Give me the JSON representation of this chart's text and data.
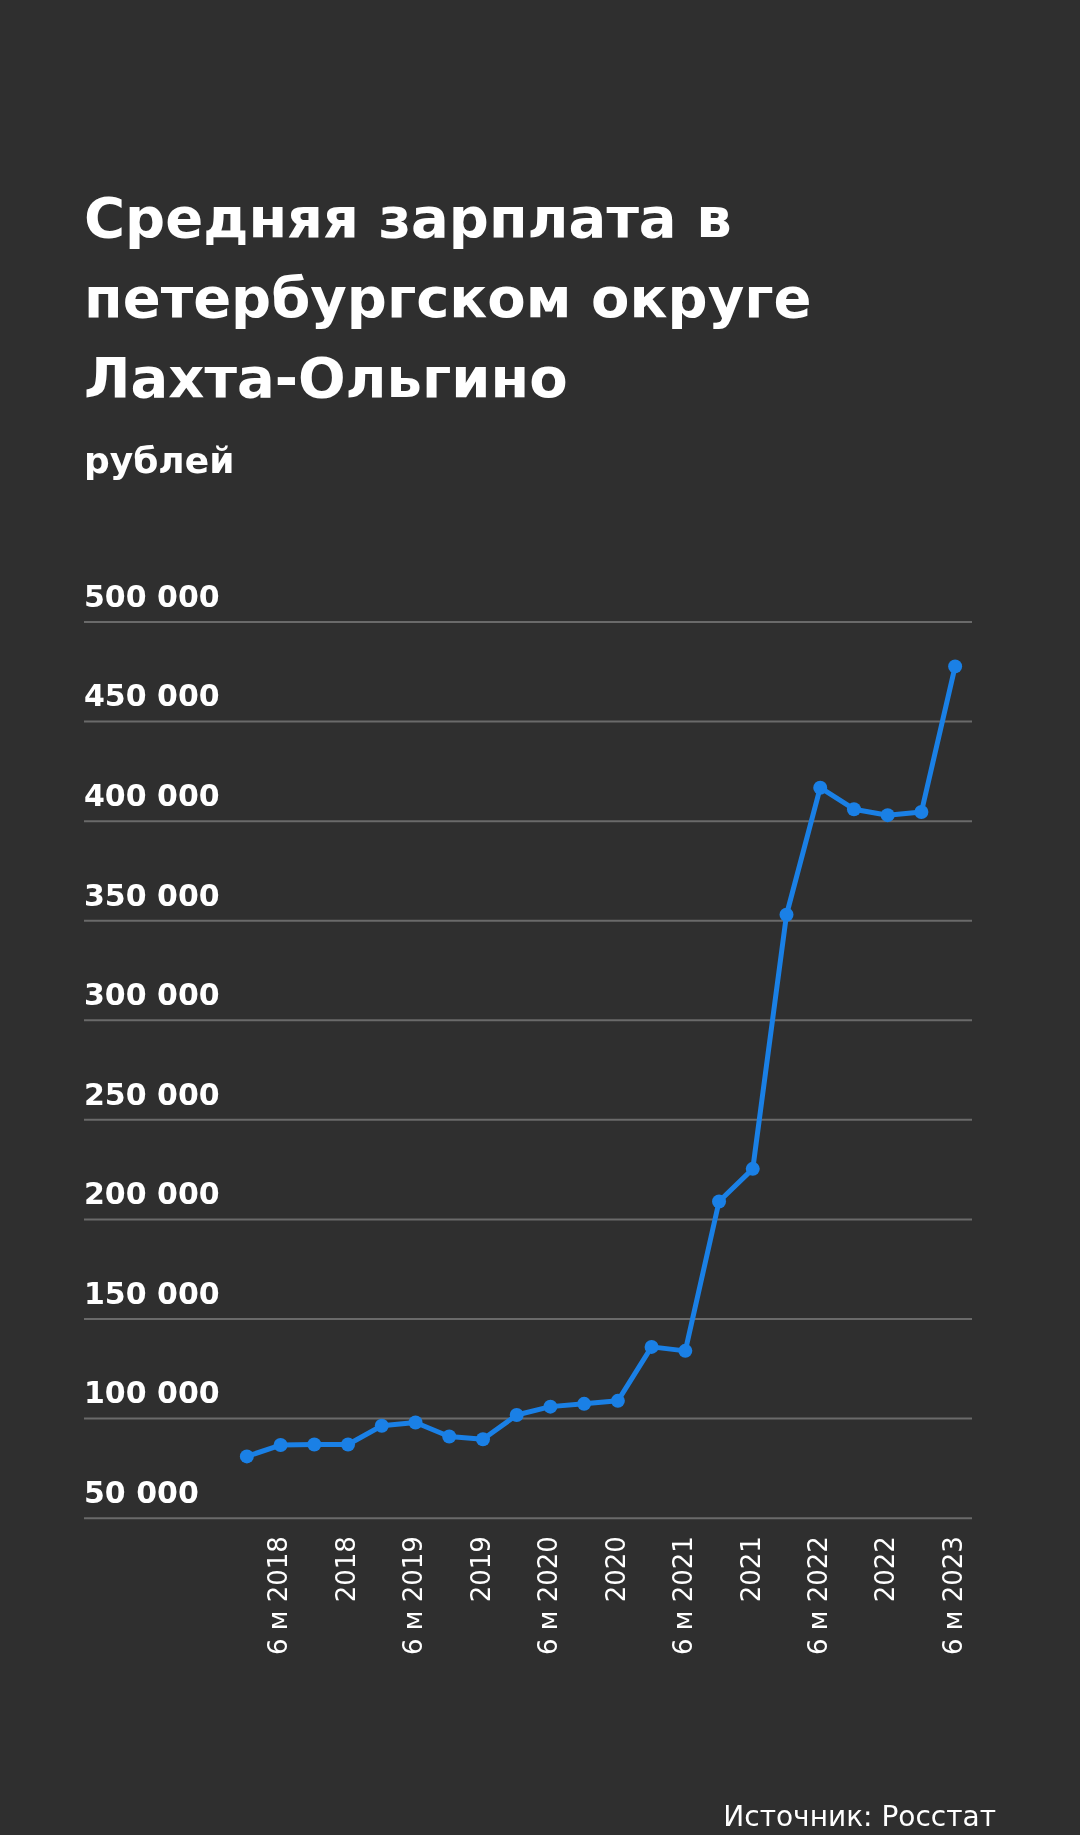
{
  "chart_data": {
    "type": "line",
    "title": "Средняя зарплата в петербургском округе Лахта-Ольгино",
    "subtitle": "рублей",
    "categories": [
      null,
      "6 м 2018",
      null,
      "2018",
      null,
      "6 м 2019",
      null,
      "2019",
      null,
      "6 м 2020",
      null,
      "2020",
      null,
      "6 м 2021",
      null,
      "2021",
      null,
      "6 м 2022",
      null,
      "2022",
      null,
      "6 м 2023"
    ],
    "series": [
      {
        "color": "#1a80e6",
        "values": [
          81000,
          86700,
          87000,
          87000,
          96400,
          98000,
          91000,
          89600,
          101800,
          106000,
          107400,
          108900,
          136000,
          134000,
          209000,
          225400,
          353000,
          416800,
          406000,
          403000,
          404600,
          477700
        ]
      }
    ],
    "ylim": [
      50000,
      500000
    ],
    "yticks": [
      {
        "value": 50000,
        "label": "50 000"
      },
      {
        "value": 100000,
        "label": "100 000"
      },
      {
        "value": 150000,
        "label": "150 000"
      },
      {
        "value": 200000,
        "label": "200 000"
      },
      {
        "value": 250000,
        "label": "250 000"
      },
      {
        "value": 300000,
        "label": "300 000"
      },
      {
        "value": 350000,
        "label": "350 000"
      },
      {
        "value": 400000,
        "label": "400 000"
      },
      {
        "value": 450000,
        "label": "450 000"
      },
      {
        "value": 500000,
        "label": "500 000"
      }
    ],
    "grid": "y",
    "marker": "circle",
    "line_style": "solid",
    "annotations": [
      "Источник: Росстат"
    ]
  }
}
